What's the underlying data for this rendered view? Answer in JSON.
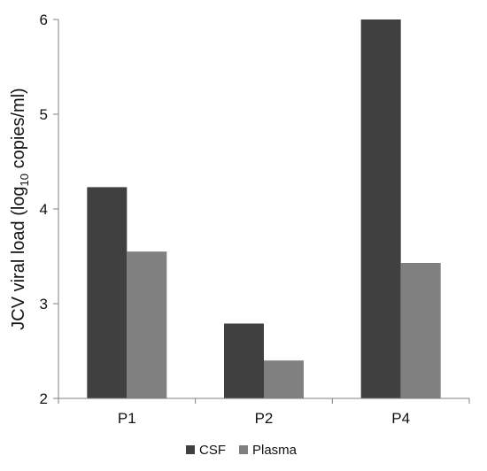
{
  "chart_data": {
    "type": "bar",
    "title": "",
    "xlabel": "",
    "ylabel": {
      "prefix": "JCV viral load (log",
      "subscript": "10",
      "suffix": " copies/ml)"
    },
    "categories": [
      "P1",
      "P2",
      "P4"
    ],
    "series": [
      {
        "name": "CSF",
        "color": "#404040",
        "values": [
          4.23,
          2.79,
          6.0
        ]
      },
      {
        "name": "Plasma",
        "color": "#808080",
        "values": [
          3.55,
          2.4,
          3.43
        ]
      }
    ],
    "ylim": [
      2,
      6
    ],
    "yticks": [
      "2",
      "3",
      "4",
      "5",
      "6"
    ],
    "grid": false,
    "legend": "bottom"
  }
}
